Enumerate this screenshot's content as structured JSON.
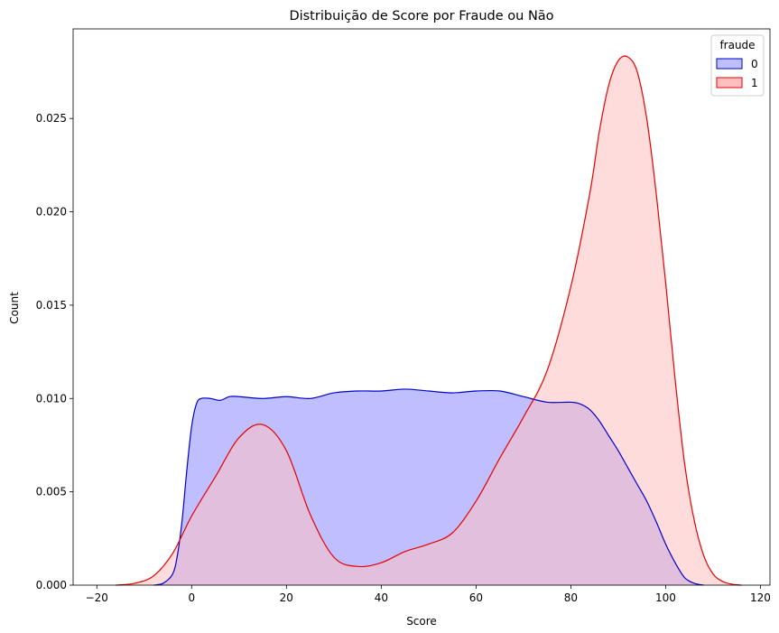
{
  "chart_data": {
    "type": "area",
    "title": "Distribuição de Score por Fraude ou Não",
    "xlabel": "Score",
    "ylabel": "Count",
    "xlim": [
      -25,
      122
    ],
    "ylim": [
      0,
      0.0298
    ],
    "x_ticks": [
      -20,
      0,
      20,
      40,
      60,
      80,
      100,
      120
    ],
    "y_ticks": [
      0.0,
      0.005,
      0.01,
      0.015,
      0.02,
      0.025
    ],
    "y_tick_labels": [
      "0.000",
      "0.005",
      "0.010",
      "0.015",
      "0.020",
      "0.025"
    ],
    "grid": false,
    "legend": {
      "title": "fraude",
      "placement": "top-right"
    },
    "series": [
      {
        "name": "0",
        "color": "#0000cc",
        "fill": "#bfbfff",
        "x": [
          -8,
          -6,
          -4,
          -3,
          -2,
          -1,
          0,
          1,
          2,
          4,
          6,
          8,
          10,
          15,
          20,
          25,
          30,
          35,
          40,
          45,
          50,
          55,
          60,
          65,
          70,
          75,
          80,
          82,
          84,
          86,
          88,
          90,
          92,
          94,
          96,
          98,
          100,
          102,
          104,
          106,
          108
        ],
        "y": [
          0.0,
          0.0001,
          0.0006,
          0.0016,
          0.0035,
          0.0062,
          0.0085,
          0.0097,
          0.01,
          0.01,
          0.0099,
          0.0101,
          0.0101,
          0.01,
          0.0101,
          0.01,
          0.0103,
          0.0104,
          0.0104,
          0.0105,
          0.0104,
          0.0103,
          0.0104,
          0.0104,
          0.0101,
          0.0098,
          0.0098,
          0.0097,
          0.0094,
          0.0088,
          0.008,
          0.0072,
          0.0063,
          0.0054,
          0.0045,
          0.0034,
          0.0022,
          0.0012,
          0.0004,
          0.0001,
          0.0
        ]
      },
      {
        "name": "1",
        "color": "#e60000",
        "fill": "#ffbfbf",
        "x": [
          -16,
          -12,
          -8,
          -4,
          0,
          5,
          10,
          15,
          20,
          25,
          30,
          35,
          40,
          45,
          50,
          55,
          60,
          65,
          70,
          75,
          80,
          84,
          86,
          88,
          90,
          92,
          94,
          96,
          98,
          100,
          102,
          104,
          106,
          108,
          110,
          112,
          114,
          116
        ],
        "y": [
          0.0,
          0.0001,
          0.0005,
          0.0017,
          0.0037,
          0.0058,
          0.0079,
          0.0086,
          0.0072,
          0.0038,
          0.0015,
          0.001,
          0.0012,
          0.0018,
          0.0022,
          0.0028,
          0.0045,
          0.0068,
          0.009,
          0.0115,
          0.016,
          0.021,
          0.0243,
          0.0268,
          0.0281,
          0.0283,
          0.0275,
          0.025,
          0.021,
          0.0162,
          0.011,
          0.0065,
          0.0035,
          0.0016,
          0.0006,
          0.0002,
          5e-05,
          0.0
        ]
      }
    ]
  }
}
